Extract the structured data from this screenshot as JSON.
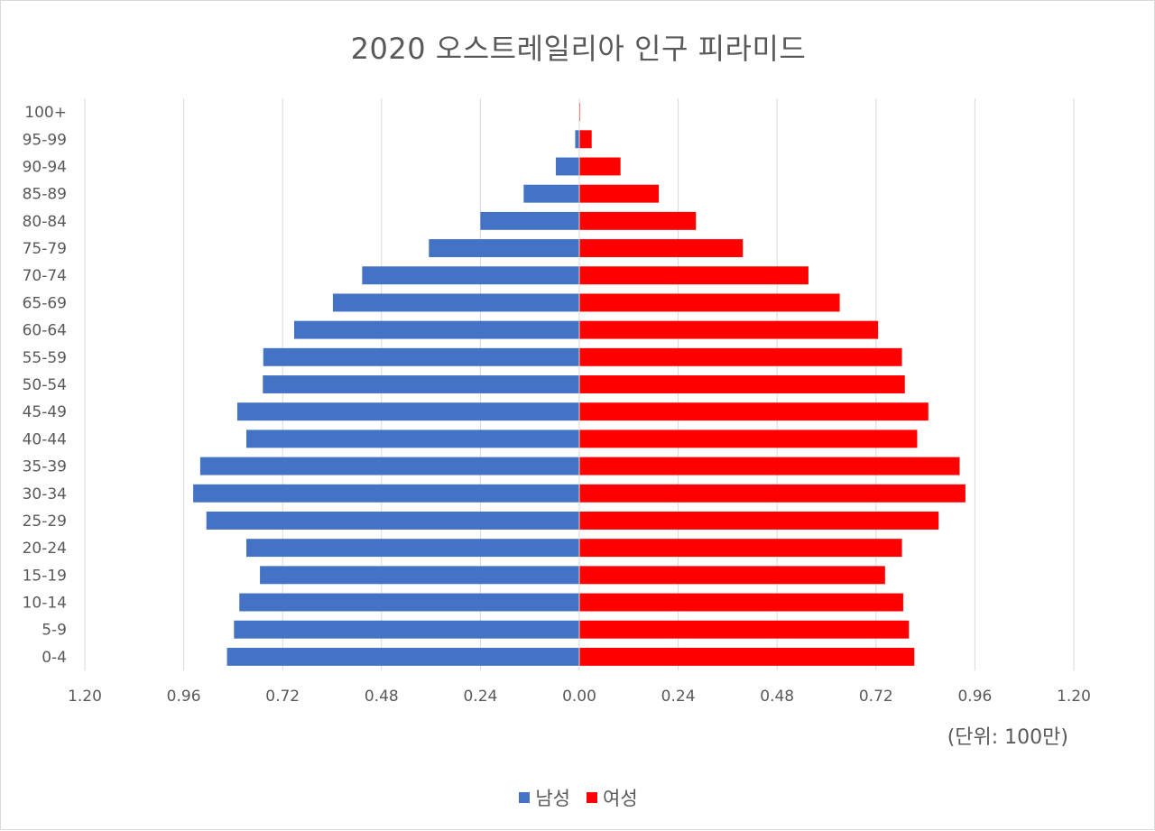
{
  "chart_data": {
    "type": "bar",
    "orientation": "horizontal",
    "subtype": "population-pyramid",
    "title": "2020 오스트레일리아 인구 피라미드",
    "unit_label": "(단위: 100만)",
    "categories": [
      "0-4",
      "5-9",
      "10-14",
      "15-19",
      "20-24",
      "25-29",
      "30-34",
      "35-39",
      "40-44",
      "45-49",
      "50-54",
      "55-59",
      "60-64",
      "65-69",
      "70-74",
      "75-79",
      "80-84",
      "85-89",
      "90-94",
      "95-99",
      "100+"
    ],
    "series": [
      {
        "name": "남성",
        "color": "#4472C4",
        "direction": "left",
        "values": [
          0.855,
          0.838,
          0.825,
          0.775,
          0.808,
          0.905,
          0.937,
          0.92,
          0.808,
          0.83,
          0.768,
          0.767,
          0.692,
          0.598,
          0.527,
          0.365,
          0.24,
          0.135,
          0.057,
          0.01,
          0.001
        ]
      },
      {
        "name": "여성",
        "color": "#FF0000",
        "direction": "right",
        "values": [
          0.813,
          0.8,
          0.786,
          0.742,
          0.783,
          0.872,
          0.937,
          0.923,
          0.82,
          0.847,
          0.79,
          0.783,
          0.725,
          0.632,
          0.556,
          0.397,
          0.283,
          0.193,
          0.1,
          0.03,
          0.002
        ]
      }
    ],
    "x_ticks": [
      "1.20",
      "0.96",
      "0.72",
      "0.48",
      "0.24",
      "0.00",
      "0.24",
      "0.48",
      "0.72",
      "0.96",
      "1.20"
    ],
    "xlim": [
      -1.2,
      1.2
    ],
    "grid": "vertical",
    "legend_position": "bottom"
  }
}
